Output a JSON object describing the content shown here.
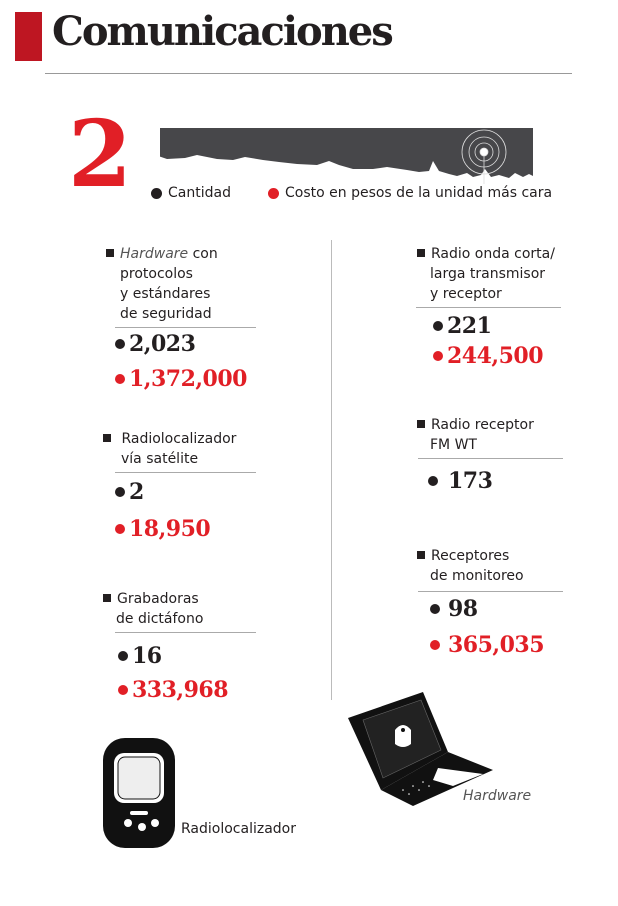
{
  "header": {
    "title": "Comunicaciones",
    "section_number": "2"
  },
  "legend": {
    "quantity_label": "Cantidad",
    "cost_label": "Costo en pesos de la unidad más cara",
    "quantity_color": "#231f20",
    "cost_color": "#e11f26"
  },
  "left_items": [
    {
      "label_italic": "Hardware",
      "label_lines": [
        " con",
        "protocolos",
        "y estándares",
        "de seguridad"
      ],
      "quantity": "2,023",
      "cost": "1,372,000"
    },
    {
      "label_lines": [
        "Radiolocalizador",
        "vía satélite"
      ],
      "quantity": "2",
      "cost": "18,950"
    },
    {
      "label_lines": [
        "Grabadoras",
        "de dictáfono"
      ],
      "quantity": "16",
      "cost": "333,968"
    }
  ],
  "right_items": [
    {
      "label_lines": [
        "Radio onda corta/",
        "larga transmisor",
        "y receptor"
      ],
      "quantity": "221",
      "cost": "244,500"
    },
    {
      "label_lines": [
        "Radio receptor",
        "FM WT"
      ],
      "quantity": "173"
    },
    {
      "label_lines": [
        "Receptores",
        "de monitoreo"
      ],
      "quantity": "98",
      "cost": "365,035"
    }
  ],
  "illustrations": {
    "pager_caption": "Radiolocalizador",
    "laptop_caption": "Hardware"
  }
}
